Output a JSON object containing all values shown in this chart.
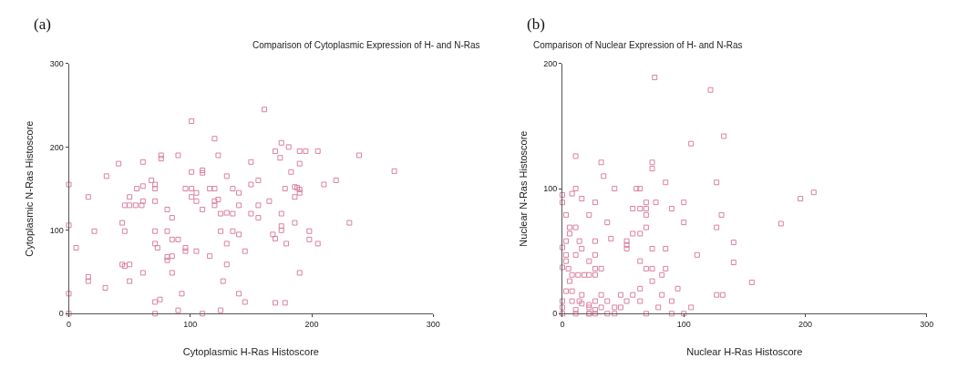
{
  "chart_data": [
    {
      "type": "scatter",
      "title": "Comparison of Cytoplasmic Expression of H- and N-Ras",
      "xlabel": "Cytoplasmic H-Ras Histoscore",
      "ylabel": "Cytoplasmic N-Ras Histoscore",
      "annotations": [
        "(a)"
      ],
      "xlim": [
        0,
        300
      ],
      "ylim": [
        0,
        300
      ],
      "xticks": [
        0,
        100,
        200,
        300
      ],
      "yticks": [
        0,
        100,
        200,
        300
      ],
      "marker": "square",
      "series": [
        {
          "color": "#d9829f",
          "x": [
            0,
            0,
            0,
            0,
            6,
            16,
            16,
            16,
            21,
            30,
            31,
            41,
            44,
            46,
            46,
            50,
            55,
            60,
            44,
            46,
            50,
            50,
            50,
            56,
            61,
            61,
            61,
            61,
            68,
            71,
            71,
            71,
            71,
            71,
            73,
            71,
            75,
            71,
            76,
            76,
            81,
            81,
            81,
            81,
            85,
            85,
            85,
            90,
            85,
            90,
            90,
            93,
            96,
            101,
            96,
            96,
            101,
            101,
            101,
            105,
            105,
            105,
            110,
            110,
            110,
            110,
            116,
            120,
            116,
            120,
            120,
            120,
            123,
            123,
            125,
            130,
            135,
            125,
            125,
            130,
            130,
            130,
            127,
            135,
            140,
            135,
            140,
            140,
            140,
            145,
            145,
            150,
            150,
            156,
            156,
            150,
            156,
            161,
            165,
            168,
            170,
            170,
            174,
            170,
            178,
            175,
            181,
            175,
            175,
            175,
            178,
            179,
            183,
            186,
            188,
            190,
            190,
            186,
            186,
            190,
            195,
            190,
            190,
            198,
            198,
            205,
            205,
            210,
            220,
            231,
            239,
            268
          ],
          "values": [
            155,
            106,
            24,
            0,
            79,
            140,
            44,
            39,
            99,
            31,
            165,
            180,
            109,
            99,
            130,
            130,
            130,
            130,
            59,
            57,
            59,
            140,
            39,
            150,
            153,
            182,
            49,
            135,
            160,
            155,
            150,
            135,
            99,
            84,
            79,
            14,
            17,
            0,
            190,
            186,
            125,
            99,
            68,
            64,
            69,
            115,
            89,
            89,
            49,
            190,
            4,
            24,
            150,
            150,
            79,
            75,
            231,
            170,
            140,
            145,
            135,
            75,
            172,
            169,
            125,
            0,
            150,
            150,
            69,
            210,
            135,
            130,
            137,
            190,
            120,
            121,
            120,
            99,
            4,
            165,
            84,
            59,
            39,
            150,
            145,
            99,
            95,
            130,
            24,
            75,
            14,
            182,
            155,
            160,
            130,
            120,
            115,
            245,
            135,
            95,
            90,
            195,
            187,
            13,
            13,
            205,
            200,
            120,
            105,
            100,
            150,
            84,
            170,
            152,
            151,
            149,
            145,
            140,
            109,
            195,
            195,
            180,
            49,
            99,
            89,
            195,
            84,
            155,
            160,
            109,
            190,
            171
          ]
        }
      ]
    },
    {
      "type": "scatter",
      "title": "Comparison of Nuclear Expression of H- and N-Ras",
      "xlabel": "Nuclear H-Ras Histoscore",
      "ylabel": "Nuclear N-Ras Histoscore",
      "annotations": [
        "(b)"
      ],
      "xlim": [
        0,
        300
      ],
      "ylim": [
        0,
        200
      ],
      "xticks": [
        0,
        100,
        200,
        300
      ],
      "yticks": [
        0,
        100,
        200
      ],
      "marker": "square",
      "series": [
        {
          "color": "#d9829f",
          "x": [
            76,
            122,
            133,
            106,
            11,
            32,
            74,
            74,
            34,
            85,
            127,
            11,
            8,
            43,
            61,
            64,
            0,
            0,
            16,
            27,
            69,
            77,
            100,
            58,
            64,
            69,
            90,
            3,
            22,
            69,
            131,
            37,
            100,
            6,
            11,
            69,
            127,
            6,
            58,
            64,
            40,
            3,
            14,
            27,
            53,
            53,
            53,
            0,
            16,
            74,
            85,
            3,
            11,
            27,
            111,
            3,
            22,
            64,
            0,
            5,
            27,
            32,
            69,
            74,
            85,
            8,
            13,
            18,
            22,
            27,
            82,
            6,
            74,
            3,
            8,
            64,
            95,
            16,
            32,
            48,
            58,
            82,
            127,
            132,
            0,
            8,
            14,
            27,
            37,
            53,
            64,
            90,
            16,
            22,
            0,
            22,
            32,
            43,
            48,
            79,
            106,
            11,
            27,
            0,
            11,
            22,
            37,
            43,
            90,
            22,
            27,
            69,
            100,
            207,
            196,
            180,
            141,
            141,
            156
          ],
          "values": [
            189,
            179,
            142,
            136,
            126,
            121,
            121,
            116,
            110,
            105,
            105,
            100,
            96,
            100,
            100,
            100,
            95,
            89,
            92,
            89,
            89,
            89,
            89,
            84,
            84,
            84,
            84,
            79,
            79,
            79,
            79,
            73,
            73,
            69,
            69,
            69,
            69,
            64,
            64,
            64,
            60,
            58,
            58,
            58,
            58,
            55,
            52,
            53,
            52,
            52,
            52,
            47,
            47,
            47,
            47,
            42,
            42,
            42,
            37,
            36,
            36,
            36,
            36,
            36,
            36,
            31,
            31,
            31,
            31,
            31,
            31,
            26,
            26,
            18,
            18,
            20,
            20,
            15,
            15,
            15,
            15,
            15,
            15,
            15,
            10,
            10,
            10,
            10,
            10,
            10,
            10,
            10,
            8,
            7,
            5,
            5,
            5,
            5,
            5,
            5,
            5,
            3,
            3,
            0,
            0,
            0,
            0,
            0,
            0,
            0,
            0,
            0,
            0,
            97,
            92,
            72,
            57,
            41,
            25
          ]
        }
      ]
    }
  ]
}
